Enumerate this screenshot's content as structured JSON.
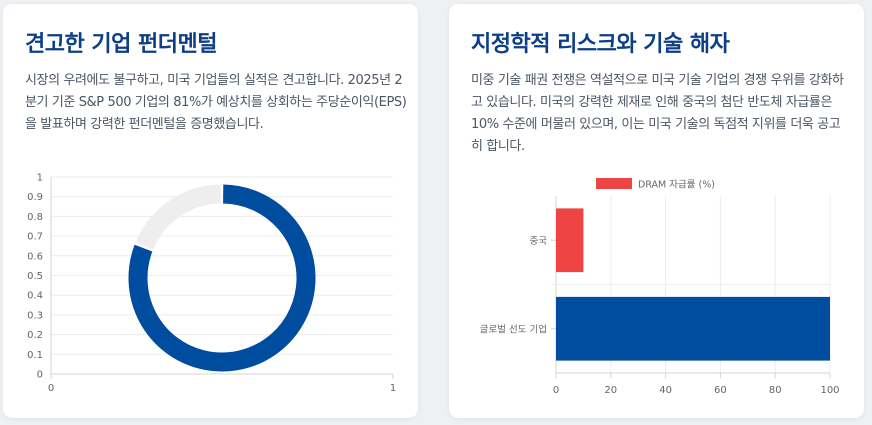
{
  "left_card": {
    "title": "견고한 기업 펀더멘털",
    "paragraph": "시장의 우려에도 불구하고, 미국 기업들의 실적은 견고합니다. 2025년 2분기 기준 S&P 500 기업의 81%가 예상치를 상회하는 주당순이익(EPS)을 발표하며 강력한 펀더멘털을 증명했습니다."
  },
  "right_card": {
    "title": "지정학적 리스크와 기술 해자",
    "paragraph": "미중 기술 패권 전쟁은 역설적으로 미국 기술 기업의 경쟁 우위를 강화하고 있습니다. 미국의 강력한 제재로 인해 중국의 첨단 반도체 자급률은 10% 수준에 머물러 있으며, 이는 미국 기술의 독점적 지위를 더욱 공고히 합니다."
  },
  "colors": {
    "title": "#0d3f86",
    "donut_main": "#004c9e",
    "donut_rest": "#eeeeee",
    "bar_china": "#ef4444",
    "bar_global": "#004c9e"
  },
  "chart_data": [
    {
      "type": "pie",
      "variant": "doughnut",
      "categories": [
        "",
        ""
      ],
      "values": [
        81,
        19
      ],
      "axis_ticks_y": [
        "1",
        "0.9",
        "0.8",
        "0.7",
        "0.6",
        "0.5",
        "0.4",
        "0.3",
        "0.2",
        "0.1",
        "0"
      ],
      "axis_ticks_x": [
        "0",
        "1"
      ],
      "grid": true
    },
    {
      "type": "bar",
      "orientation": "horizontal",
      "categories": [
        "중국",
        "글로벌 선도 기업"
      ],
      "series": [
        {
          "name": "DRAM 자급률 (%)",
          "values": [
            10,
            100
          ]
        }
      ],
      "xlim": [
        0,
        100
      ],
      "x_ticks": [
        "0",
        "20",
        "40",
        "60",
        "80",
        "100"
      ],
      "legend": "top",
      "grid": true
    }
  ]
}
